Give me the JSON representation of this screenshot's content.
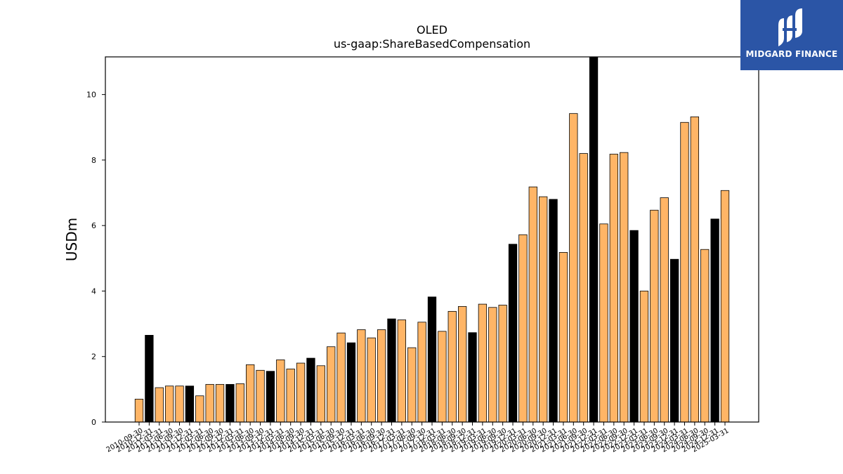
{
  "chart_data": {
    "type": "bar",
    "title": "OLED",
    "subtitle": "us-gaap:ShareBasedCompensation",
    "xlabel": "",
    "ylabel": "USDm",
    "ylim": [
      0,
      11.15
    ],
    "yticks": [
      0,
      2,
      4,
      6,
      8,
      10
    ],
    "grid": false,
    "colors": {
      "quarter": "#ffb566",
      "year_end": "#000000",
      "edge": "#000000"
    },
    "categories": [
      "2010-09-30",
      "2010-12-31",
      "2011-03-31",
      "2011-06-30",
      "2011-09-30",
      "2011-12-31",
      "2012-03-31",
      "2012-06-30",
      "2012-09-30",
      "2012-12-31",
      "2013-03-31",
      "2013-06-30",
      "2013-09-30",
      "2013-12-31",
      "2014-03-31",
      "2014-06-30",
      "2014-09-30",
      "2014-12-31",
      "2015-03-31",
      "2015-06-30",
      "2015-09-30",
      "2015-12-31",
      "2016-03-31",
      "2016-06-30",
      "2016-09-30",
      "2016-12-31",
      "2017-03-31",
      "2017-06-30",
      "2017-09-30",
      "2017-12-31",
      "2018-03-31",
      "2018-06-30",
      "2018-09-30",
      "2018-12-31",
      "2019-03-31",
      "2019-06-30",
      "2019-09-30",
      "2019-12-31",
      "2020-03-31",
      "2020-06-30",
      "2020-09-30",
      "2020-12-31",
      "2021-03-31",
      "2021-06-30",
      "2021-09-30",
      "2021-12-31",
      "2022-03-31",
      "2022-06-30",
      "2022-09-30",
      "2022-12-31",
      "2023-03-31",
      "2023-06-30",
      "2023-09-30",
      "2023-12-31",
      "2024-03-31",
      "2024-06-30",
      "2024-09-30",
      "2024-12-31",
      "2025-03-31"
    ],
    "values": [
      0.7,
      2.65,
      1.05,
      1.1,
      1.1,
      1.1,
      0.8,
      1.15,
      1.15,
      1.15,
      1.17,
      1.75,
      1.58,
      1.55,
      1.9,
      1.62,
      1.8,
      1.95,
      1.72,
      2.3,
      2.72,
      2.42,
      2.82,
      2.57,
      2.82,
      3.15,
      3.12,
      2.27,
      3.05,
      3.82,
      2.77,
      3.38,
      3.53,
      2.73,
      3.6,
      3.5,
      3.57,
      5.43,
      5.72,
      7.18,
      6.88,
      6.8,
      5.18,
      9.42,
      8.2,
      11.15,
      6.05,
      8.18,
      8.23,
      5.85,
      4.0,
      6.47,
      6.85,
      4.97,
      9.15,
      9.32,
      5.27,
      6.2,
      7.07
    ],
    "year_end": [
      false,
      true,
      false,
      false,
      false,
      true,
      false,
      false,
      false,
      true,
      false,
      false,
      false,
      true,
      false,
      false,
      false,
      true,
      false,
      false,
      false,
      true,
      false,
      false,
      false,
      true,
      false,
      false,
      false,
      true,
      false,
      false,
      false,
      true,
      false,
      false,
      false,
      true,
      false,
      false,
      false,
      true,
      false,
      false,
      false,
      true,
      false,
      false,
      false,
      true,
      false,
      false,
      false,
      true,
      false,
      false,
      false,
      true,
      false
    ]
  },
  "logo": {
    "text": "MIDGARD FINANCE",
    "icon": "midgard-logo-icon"
  }
}
